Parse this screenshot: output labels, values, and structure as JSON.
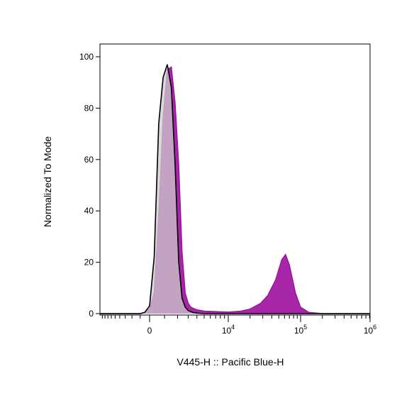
{
  "chart_data": {
    "type": "area",
    "title": "",
    "xlabel": "V445-H :: Pacific Blue-H",
    "ylabel": "Normalized To Mode",
    "x_scale": "biexponential",
    "ylim": [
      0,
      100
    ],
    "grid": false,
    "legend": "none",
    "y_ticks": [
      {
        "value": 0,
        "label": "0"
      },
      {
        "value": 20,
        "label": "20"
      },
      {
        "value": 40,
        "label": "40"
      },
      {
        "value": 60,
        "label": "60"
      },
      {
        "value": 80,
        "label": "80"
      },
      {
        "value": 100,
        "label": "100"
      }
    ],
    "x_ticks": [
      {
        "value": 0,
        "label": "0",
        "exp": ""
      },
      {
        "value": 10000,
        "label": "10",
        "exp": "4"
      },
      {
        "value": 100000,
        "label": "10",
        "exp": "5"
      },
      {
        "value": 1000000,
        "label": "10",
        "exp": "6"
      }
    ],
    "series": [
      {
        "color": "#9c139c",
        "fill": "#a31aa3",
        "x": [
          -10000,
          -1500,
          -1000,
          -500,
          0,
          300,
          600,
          900,
          1200,
          1500,
          1800,
          2100,
          2400,
          2700,
          3000,
          3300,
          3600,
          4000,
          5000,
          7000,
          10000,
          15000,
          20000,
          28000,
          35000,
          45000,
          55000,
          62000,
          70000,
          85000,
          100000,
          130000,
          200000,
          500000,
          1000000
        ],
        "y": [
          0,
          0,
          0,
          0.3,
          2,
          8,
          38,
          76,
          95,
          96,
          82,
          58,
          24,
          8,
          4,
          2.5,
          2,
          1.5,
          1,
          0.8,
          0.6,
          1,
          1.8,
          4,
          7,
          13,
          21,
          23,
          19,
          8,
          2.5,
          0.5,
          0,
          0,
          0
        ]
      },
      {
        "color": "#000000",
        "fill": "#cccccc",
        "x": [
          -10000,
          -1500,
          -1000,
          -500,
          0,
          300,
          600,
          900,
          1200,
          1500,
          1800,
          2100,
          2400,
          2700,
          3000,
          3500,
          4000,
          5000,
          10000,
          100000,
          1000000
        ],
        "y": [
          0,
          0,
          0,
          0.5,
          3,
          22,
          74,
          92,
          97,
          88,
          58,
          20,
          6,
          2.5,
          1.2,
          0.5,
          0.2,
          0,
          0,
          0,
          0
        ]
      }
    ]
  }
}
